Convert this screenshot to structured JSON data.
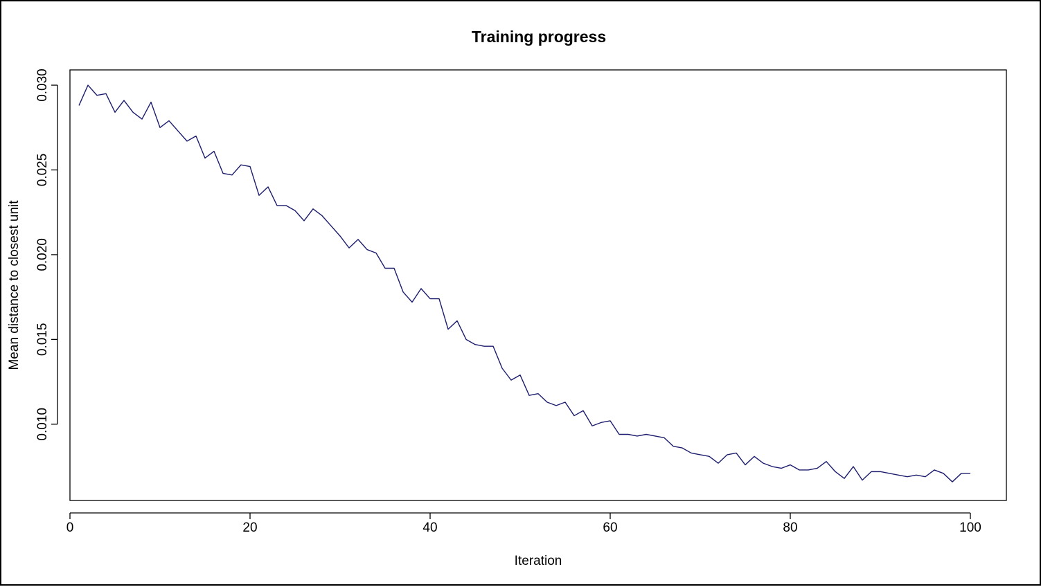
{
  "chart_data": {
    "type": "line",
    "title": "Training progress",
    "xlabel": "Iteration",
    "ylabel": "Mean distance to closest unit",
    "xlim": [
      0,
      104
    ],
    "ylim": [
      0.0055,
      0.0309
    ],
    "xticks": [
      0,
      20,
      40,
      60,
      80,
      100
    ],
    "xtick_labels": [
      "0",
      "20",
      "40",
      "60",
      "80",
      "100"
    ],
    "yticks": [
      0.01,
      0.015,
      0.02,
      0.025,
      0.03
    ],
    "ytick_labels": [
      "0.010",
      "0.015",
      "0.020",
      "0.025",
      "0.030"
    ],
    "grid": false,
    "line_color": "#1c1c6e",
    "series": [
      {
        "x": [
          1,
          2,
          3,
          4,
          5,
          6,
          7,
          8,
          9,
          10,
          11,
          12,
          13,
          14,
          15,
          16,
          17,
          18,
          19,
          20,
          21,
          22,
          23,
          24,
          25,
          26,
          27,
          28,
          29,
          30,
          31,
          32,
          33,
          34,
          35,
          36,
          37,
          38,
          39,
          40,
          41,
          42,
          43,
          44,
          45,
          46,
          47,
          48,
          49,
          50,
          51,
          52,
          53,
          54,
          55,
          56,
          57,
          58,
          59,
          60,
          61,
          62,
          63,
          64,
          65,
          66,
          67,
          68,
          69,
          70,
          71,
          72,
          73,
          74,
          75,
          76,
          77,
          78,
          79,
          80,
          81,
          82,
          83,
          84,
          85,
          86,
          87,
          88,
          89,
          90,
          91,
          92,
          93,
          94,
          95,
          96,
          97,
          98,
          99,
          100
        ],
        "values": [
          0.0288,
          0.03,
          0.0294,
          0.0295,
          0.0284,
          0.0291,
          0.0284,
          0.028,
          0.029,
          0.0275,
          0.0279,
          0.0273,
          0.0267,
          0.027,
          0.0257,
          0.0261,
          0.0248,
          0.0247,
          0.0253,
          0.0252,
          0.0235,
          0.024,
          0.0229,
          0.0229,
          0.0226,
          0.022,
          0.0227,
          0.0223,
          0.0217,
          0.0211,
          0.0204,
          0.0209,
          0.0203,
          0.0201,
          0.0192,
          0.0192,
          0.0178,
          0.0172,
          0.018,
          0.0174,
          0.0174,
          0.0156,
          0.0161,
          0.015,
          0.0147,
          0.0146,
          0.0146,
          0.0133,
          0.0126,
          0.0129,
          0.0117,
          0.0118,
          0.0113,
          0.0111,
          0.0113,
          0.0105,
          0.0108,
          0.0099,
          0.0101,
          0.0102,
          0.0094,
          0.0094,
          0.0093,
          0.0094,
          0.0093,
          0.0092,
          0.0087,
          0.0086,
          0.0083,
          0.0082,
          0.0081,
          0.0077,
          0.0082,
          0.0083,
          0.0076,
          0.0081,
          0.0077,
          0.0075,
          0.0074,
          0.0076,
          0.0073,
          0.0073,
          0.0074,
          0.0078,
          0.0072,
          0.0068,
          0.0075,
          0.0067,
          0.0072,
          0.0072,
          0.0071,
          0.007,
          0.0069,
          0.007,
          0.0069,
          0.0073,
          0.0071,
          0.0066,
          0.0071,
          0.0071
        ]
      }
    ]
  }
}
